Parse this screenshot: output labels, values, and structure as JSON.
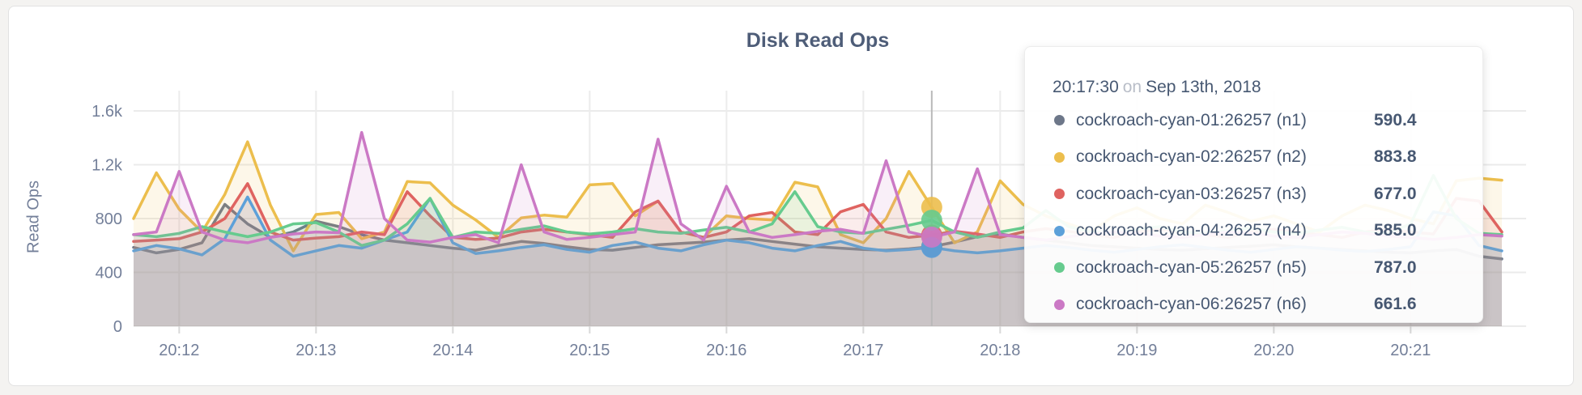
{
  "tooltip": {
    "time": "20:17:30",
    "connector": "on",
    "date": "Sep 13th, 2018",
    "rows": [
      {
        "label": "cockroach-cyan-01:26257 (n1)",
        "value": "590.4",
        "color": "#6d7789"
      },
      {
        "label": "cockroach-cyan-02:26257 (n2)",
        "value": "883.8",
        "color": "#ecbe4d"
      },
      {
        "label": "cockroach-cyan-03:26257 (n3)",
        "value": "677.0",
        "color": "#df6360"
      },
      {
        "label": "cockroach-cyan-04:26257 (n4)",
        "value": "585.0",
        "color": "#5da0d9"
      },
      {
        "label": "cockroach-cyan-05:26257 (n5)",
        "value": "787.0",
        "color": "#66cb8e"
      },
      {
        "label": "cockroach-cyan-06:26257 (n6)",
        "value": "661.6",
        "color": "#cb79c5"
      }
    ]
  },
  "chart_data": {
    "type": "line",
    "title": "Disk Read Ops",
    "ylabel": "Read Ops",
    "ylim": [
      0,
      1600
    ],
    "grid": true,
    "y_ticks": [
      {
        "value": 0,
        "label": "0"
      },
      {
        "value": 400,
        "label": "400"
      },
      {
        "value": 800,
        "label": "800"
      },
      {
        "value": 1200,
        "label": "1.2k"
      },
      {
        "value": 1600,
        "label": "1.6k"
      }
    ],
    "x_ticks": [
      "20:12",
      "20:13",
      "20:14",
      "20:15",
      "20:16",
      "20:17",
      "20:18",
      "20:19",
      "20:20",
      "20:21"
    ],
    "x_step_seconds": 10,
    "x_first_tick_offset_seconds": 20,
    "x_tick_interval_seconds": 60,
    "hover_index": 35,
    "hover_time": "20:17:30",
    "fill_opacity": 0.12,
    "series": [
      {
        "name": "cockroach-cyan-01:26257 (n1)",
        "color": "#6d7789",
        "values": [
          585,
          545,
          570,
          620,
          905,
          760,
          660,
          700,
          780,
          740,
          680,
          640,
          620,
          600,
          580,
          565,
          600,
          630,
          615,
          590,
          570,
          565,
          585,
          605,
          615,
          625,
          640,
          650,
          630,
          610,
          590,
          580,
          570,
          565,
          575,
          590.4,
          625,
          665,
          685,
          660,
          640,
          620,
          600,
          590,
          580,
          570,
          565,
          575,
          585,
          595,
          605,
          590,
          580,
          570,
          560,
          550,
          545,
          560,
          570,
          520,
          500
        ]
      },
      {
        "name": "cockroach-cyan-02:26257 (n2)",
        "color": "#ecbe4d",
        "values": [
          800,
          1140,
          870,
          700,
          980,
          1370,
          900,
          560,
          830,
          845,
          650,
          700,
          1075,
          1065,
          900,
          790,
          660,
          805,
          825,
          810,
          1050,
          1060,
          820,
          930,
          700,
          660,
          820,
          800,
          790,
          1070,
          1035,
          680,
          620,
          800,
          1150,
          883.8,
          620,
          700,
          1080,
          905,
          820,
          760,
          705,
          820,
          880,
          800,
          760,
          900,
          845,
          780,
          820,
          760,
          700,
          820,
          900,
          860,
          800,
          760,
          1080,
          1100,
          1085
        ]
      },
      {
        "name": "cockroach-cyan-03:26257 (n3)",
        "color": "#df6360",
        "values": [
          630,
          640,
          650,
          700,
          800,
          1060,
          700,
          640,
          655,
          665,
          700,
          680,
          1000,
          820,
          660,
          645,
          655,
          700,
          720,
          700,
          680,
          660,
          850,
          930,
          700,
          660,
          700,
          820,
          845,
          700,
          680,
          850,
          905,
          700,
          660,
          677,
          705,
          685,
          660,
          700,
          725,
          705,
          680,
          660,
          700,
          720,
          700,
          680,
          660,
          700,
          720,
          700,
          680,
          660,
          700,
          720,
          700,
          685,
          950,
          930,
          700
        ]
      },
      {
        "name": "cockroach-cyan-04:26257 (n4)",
        "color": "#5da0d9",
        "values": [
          560,
          600,
          575,
          530,
          650,
          960,
          640,
          520,
          560,
          600,
          580,
          640,
          700,
          950,
          620,
          540,
          560,
          585,
          605,
          570,
          550,
          600,
          625,
          580,
          560,
          605,
          640,
          620,
          580,
          560,
          600,
          630,
          580,
          560,
          570,
          585,
          560,
          545,
          560,
          580,
          600,
          585,
          565,
          550,
          570,
          590,
          605,
          585,
          565,
          550,
          570,
          590,
          580,
          565,
          555,
          570,
          590,
          850,
          820,
          600,
          560
        ]
      },
      {
        "name": "cockroach-cyan-05:26257 (n5)",
        "color": "#66cb8e",
        "values": [
          680,
          665,
          690,
          740,
          700,
          665,
          700,
          760,
          770,
          700,
          600,
          640,
          760,
          950,
          660,
          700,
          690,
          720,
          745,
          700,
          685,
          700,
          725,
          700,
          690,
          715,
          735,
          700,
          760,
          1000,
          740,
          700,
          690,
          720,
          750,
          787,
          700,
          660,
          700,
          730,
          860,
          740,
          700,
          690,
          720,
          740,
          700,
          690,
          710,
          730,
          700,
          690,
          715,
          735,
          700,
          690,
          760,
          1120,
          800,
          690,
          680
        ]
      },
      {
        "name": "cockroach-cyan-06:26257 (n6)",
        "color": "#cb79c5",
        "values": [
          680,
          700,
          1150,
          700,
          640,
          620,
          660,
          685,
          700,
          695,
          1440,
          800,
          640,
          625,
          660,
          680,
          620,
          1200,
          700,
          645,
          660,
          680,
          700,
          1390,
          760,
          640,
          1040,
          700,
          660,
          680,
          705,
          720,
          690,
          1230,
          700,
          661.6,
          700,
          1170,
          680,
          660,
          640,
          665,
          685,
          700,
          690,
          670,
          660,
          680,
          700,
          690,
          670,
          660,
          680,
          700,
          690,
          670,
          660,
          645,
          660,
          680,
          670
        ]
      }
    ]
  }
}
